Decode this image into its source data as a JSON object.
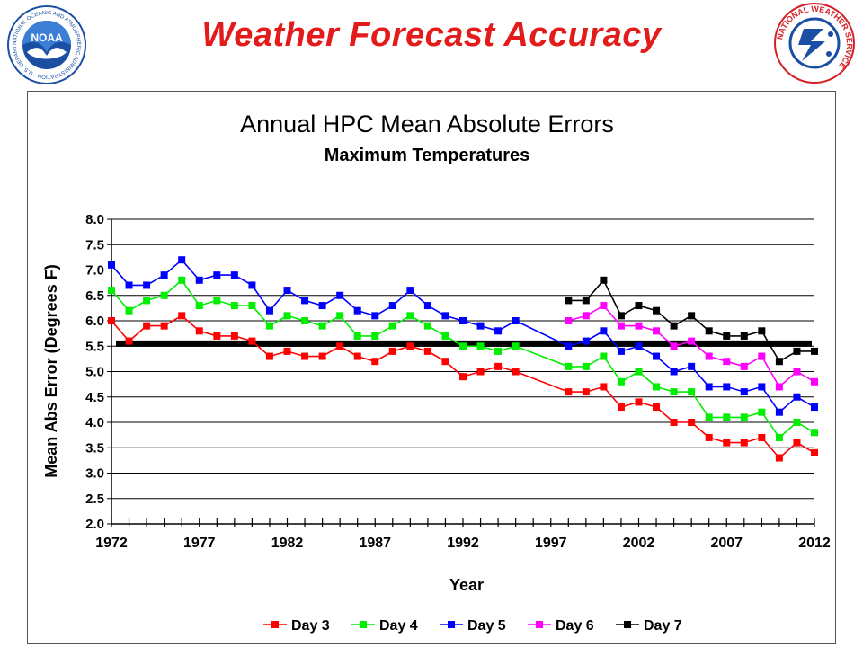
{
  "header": {
    "title": "Weather Forecast Accuracy",
    "left_logo_text": "NOAA",
    "left_logo_ring_text": "NATIONAL OCEANIC AND ATMOSPHERIC ADMINISTRATION · U.S. DEPARTMENT OF COMMERCE",
    "right_logo_ring_text": "NATIONAL WEATHER SERVICE"
  },
  "colors": {
    "title": "#e31b1b",
    "day3": "#ff0000",
    "day4": "#00ee00",
    "day5": "#0000ff",
    "day6": "#ff00ff",
    "day7": "#000000",
    "reference_line": "#000000",
    "noaa_blue": "#1a4fa3",
    "nws_red": "#d42027"
  },
  "chart_data": {
    "type": "line",
    "title": "Annual HPC Mean Absolute Errors",
    "subtitle": "Maximum Temperatures",
    "xlabel": "Year",
    "ylabel": "Mean Abs Error (Degrees F)",
    "xlim": [
      1972,
      2012
    ],
    "ylim": [
      2.0,
      8.0
    ],
    "x_ticks": [
      1972,
      1977,
      1982,
      1987,
      1992,
      1997,
      2002,
      2007,
      2012
    ],
    "y_ticks": [
      "2.0",
      "2.5",
      "3.0",
      "3.5",
      "4.0",
      "4.5",
      "5.0",
      "5.5",
      "6.0",
      "6.5",
      "7.0",
      "7.5",
      "8.0"
    ],
    "grid": "horizontal",
    "legend_position": "bottom",
    "reference_line": 5.55,
    "series": [
      {
        "name": "Day 3",
        "color": "#ff0000",
        "points": [
          [
            1972,
            6.0
          ],
          [
            1973,
            5.6
          ],
          [
            1974,
            5.9
          ],
          [
            1975,
            5.9
          ],
          [
            1976,
            6.1
          ],
          [
            1977,
            5.8
          ],
          [
            1978,
            5.7
          ],
          [
            1979,
            5.7
          ],
          [
            1980,
            5.6
          ],
          [
            1981,
            5.3
          ],
          [
            1982,
            5.4
          ],
          [
            1983,
            5.3
          ],
          [
            1984,
            5.3
          ],
          [
            1985,
            5.5
          ],
          [
            1986,
            5.3
          ],
          [
            1987,
            5.2
          ],
          [
            1988,
            5.4
          ],
          [
            1989,
            5.5
          ],
          [
            1990,
            5.4
          ],
          [
            1991,
            5.2
          ],
          [
            1992,
            4.9
          ],
          [
            1993,
            5.0
          ],
          [
            1994,
            5.1
          ],
          [
            1995,
            5.0
          ],
          [
            1998,
            4.6
          ],
          [
            1999,
            4.6
          ],
          [
            2000,
            4.7
          ],
          [
            2001,
            4.3
          ],
          [
            2002,
            4.4
          ],
          [
            2003,
            4.3
          ],
          [
            2004,
            4.0
          ],
          [
            2005,
            4.0
          ],
          [
            2006,
            3.7
          ],
          [
            2007,
            3.6
          ],
          [
            2008,
            3.6
          ],
          [
            2009,
            3.7
          ],
          [
            2010,
            3.3
          ],
          [
            2011,
            3.6
          ],
          [
            2012,
            3.4
          ]
        ]
      },
      {
        "name": "Day 4",
        "color": "#00ee00",
        "points": [
          [
            1972,
            6.6
          ],
          [
            1973,
            6.2
          ],
          [
            1974,
            6.4
          ],
          [
            1975,
            6.5
          ],
          [
            1976,
            6.8
          ],
          [
            1977,
            6.3
          ],
          [
            1978,
            6.4
          ],
          [
            1979,
            6.3
          ],
          [
            1980,
            6.3
          ],
          [
            1981,
            5.9
          ],
          [
            1982,
            6.1
          ],
          [
            1983,
            6.0
          ],
          [
            1984,
            5.9
          ],
          [
            1985,
            6.1
          ],
          [
            1986,
            5.7
          ],
          [
            1987,
            5.7
          ],
          [
            1988,
            5.9
          ],
          [
            1989,
            6.1
          ],
          [
            1990,
            5.9
          ],
          [
            1991,
            5.7
          ],
          [
            1992,
            5.5
          ],
          [
            1993,
            5.5
          ],
          [
            1994,
            5.4
          ],
          [
            1995,
            5.5
          ],
          [
            1998,
            5.1
          ],
          [
            1999,
            5.1
          ],
          [
            2000,
            5.3
          ],
          [
            2001,
            4.8
          ],
          [
            2002,
            5.0
          ],
          [
            2003,
            4.7
          ],
          [
            2004,
            4.6
          ],
          [
            2005,
            4.6
          ],
          [
            2006,
            4.1
          ],
          [
            2007,
            4.1
          ],
          [
            2008,
            4.1
          ],
          [
            2009,
            4.2
          ],
          [
            2010,
            3.7
          ],
          [
            2011,
            4.0
          ],
          [
            2012,
            3.8
          ]
        ]
      },
      {
        "name": "Day 5",
        "color": "#0000ff",
        "points": [
          [
            1972,
            7.1
          ],
          [
            1973,
            6.7
          ],
          [
            1974,
            6.7
          ],
          [
            1975,
            6.9
          ],
          [
            1976,
            7.2
          ],
          [
            1977,
            6.8
          ],
          [
            1978,
            6.9
          ],
          [
            1979,
            6.9
          ],
          [
            1980,
            6.7
          ],
          [
            1981,
            6.2
          ],
          [
            1982,
            6.6
          ],
          [
            1983,
            6.4
          ],
          [
            1984,
            6.3
          ],
          [
            1985,
            6.5
          ],
          [
            1986,
            6.2
          ],
          [
            1987,
            6.1
          ],
          [
            1988,
            6.3
          ],
          [
            1989,
            6.6
          ],
          [
            1990,
            6.3
          ],
          [
            1991,
            6.1
          ],
          [
            1992,
            6.0
          ],
          [
            1993,
            5.9
          ],
          [
            1994,
            5.8
          ],
          [
            1995,
            6.0
          ],
          [
            1998,
            5.5
          ],
          [
            1999,
            5.6
          ],
          [
            2000,
            5.8
          ],
          [
            2001,
            5.4
          ],
          [
            2002,
            5.5
          ],
          [
            2003,
            5.3
          ],
          [
            2004,
            5.0
          ],
          [
            2005,
            5.1
          ],
          [
            2006,
            4.7
          ],
          [
            2007,
            4.7
          ],
          [
            2008,
            4.6
          ],
          [
            2009,
            4.7
          ],
          [
            2010,
            4.2
          ],
          [
            2011,
            4.5
          ],
          [
            2012,
            4.3
          ]
        ]
      },
      {
        "name": "Day 6",
        "color": "#ff00ff",
        "points": [
          [
            1998,
            6.0
          ],
          [
            1999,
            6.1
          ],
          [
            2000,
            6.3
          ],
          [
            2001,
            5.9
          ],
          [
            2002,
            5.9
          ],
          [
            2003,
            5.8
          ],
          [
            2004,
            5.5
          ],
          [
            2005,
            5.6
          ],
          [
            2006,
            5.3
          ],
          [
            2007,
            5.2
          ],
          [
            2008,
            5.1
          ],
          [
            2009,
            5.3
          ],
          [
            2010,
            4.7
          ],
          [
            2011,
            5.0
          ],
          [
            2012,
            4.8
          ]
        ]
      },
      {
        "name": "Day 7",
        "color": "#000000",
        "points": [
          [
            1998,
            6.4
          ],
          [
            1999,
            6.4
          ],
          [
            2000,
            6.8
          ],
          [
            2001,
            6.1
          ],
          [
            2002,
            6.3
          ],
          [
            2003,
            6.2
          ],
          [
            2004,
            5.9
          ],
          [
            2005,
            6.1
          ],
          [
            2006,
            5.8
          ],
          [
            2007,
            5.7
          ],
          [
            2008,
            5.7
          ],
          [
            2009,
            5.8
          ],
          [
            2010,
            5.2
          ],
          [
            2011,
            5.4
          ],
          [
            2012,
            5.4
          ]
        ]
      }
    ]
  }
}
